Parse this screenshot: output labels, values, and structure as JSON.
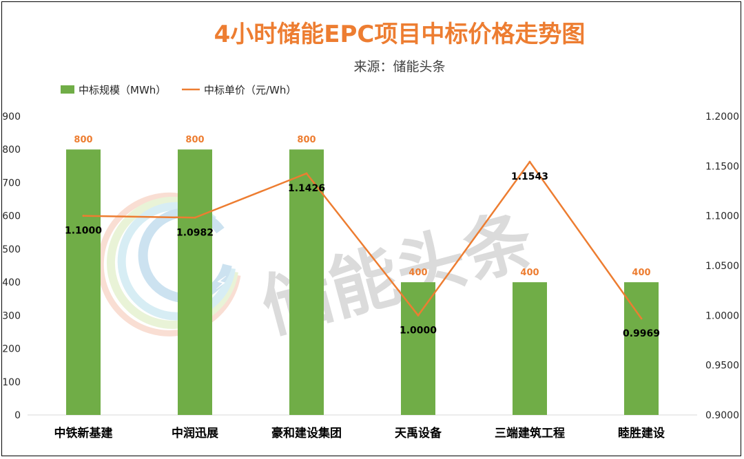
{
  "chart_data": {
    "type": "bar",
    "title": "4小时储能EPC项目中标价格走势图",
    "subtitle": "来源：储能头条",
    "watermark": "储能头条",
    "categories": [
      "中铁新基建",
      "中润迅展",
      "豪和建设集团",
      "天禹设备",
      "三端建筑工程",
      "睦胜建设"
    ],
    "series": [
      {
        "name": "中标规模（MWh）",
        "type": "bar",
        "axis": "left",
        "color": "#70AD47",
        "values": [
          800,
          800,
          800,
          400,
          400,
          400
        ],
        "labels": [
          "800",
          "800",
          "800",
          "400",
          "400",
          "400"
        ]
      },
      {
        "name": "中标单价（元/Wh）",
        "type": "line",
        "axis": "right",
        "color": "#ED7D31",
        "values": [
          1.1,
          1.0982,
          1.1426,
          1.0,
          1.1543,
          0.9969
        ],
        "labels": [
          "1.1000",
          "1.0982",
          "1.1426",
          "1.0000",
          "1.1543",
          "0.9969"
        ]
      }
    ],
    "y_left": {
      "lim": [
        0,
        900
      ],
      "ticks": [
        "0",
        "100",
        "200",
        "300",
        "400",
        "500",
        "600",
        "700",
        "800",
        "900"
      ]
    },
    "y_right": {
      "lim": [
        0.9,
        1.2
      ],
      "ticks": [
        "0.9000",
        "0.9500",
        "1.0000",
        "1.0500",
        "1.1000",
        "1.1500",
        "1.2000"
      ]
    },
    "legend_position": "top-left",
    "grid": false
  }
}
